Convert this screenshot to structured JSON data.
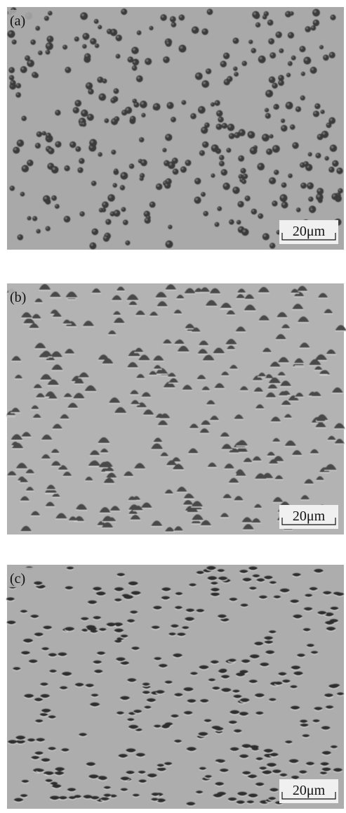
{
  "panels": [
    {
      "label": "(a)",
      "scale_bar": "20μm"
    },
    {
      "label": "(b)",
      "scale_bar": "20μm"
    },
    {
      "label": "(c)",
      "scale_bar": "20μm"
    }
  ]
}
